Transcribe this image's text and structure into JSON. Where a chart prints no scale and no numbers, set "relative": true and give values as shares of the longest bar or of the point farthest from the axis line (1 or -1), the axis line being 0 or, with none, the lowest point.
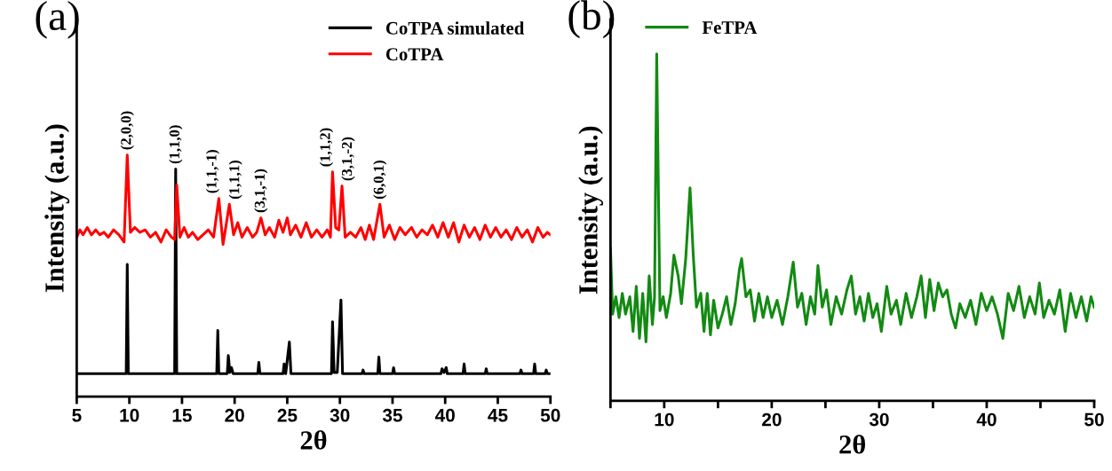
{
  "chart_data": [
    {
      "type": "line",
      "relative": true,
      "xlabel": "2θ",
      "ylabel": "Intensity (a.u.)",
      "xlim": [
        5,
        50
      ],
      "xticks": [
        5,
        10,
        15,
        20,
        25,
        30,
        35,
        40,
        45,
        50
      ],
      "legend": "top right",
      "grid": false,
      "tick_labels": "x",
      "series": [
        {
          "name": "CoTPA simulated",
          "color": "#000000",
          "x": [
            5,
            9.7,
            9.8,
            9.9,
            14.3,
            14.4,
            14.5,
            18.3,
            18.4,
            18.5,
            19.3,
            19.4,
            19.55,
            19.7,
            19.85,
            22.2,
            22.3,
            22.4,
            24.6,
            24.7,
            24.85,
            25.2,
            25.35,
            29.2,
            29.3,
            29.45,
            29.75,
            30.1,
            30.25,
            32.1,
            32.2,
            32.3,
            33.6,
            33.7,
            33.8,
            35.0,
            35.1,
            35.2,
            39.6,
            39.7,
            39.9,
            40.1,
            40.2,
            41.7,
            41.8,
            41.9,
            43.8,
            43.9,
            44.0,
            47.1,
            47.2,
            47.3,
            48.4,
            48.5,
            48.6,
            49.5,
            49.6,
            49.7,
            50
          ],
          "values": [
            0.095,
            0.095,
            0.547,
            0.095,
            0.095,
            0.942,
            0.095,
            0.095,
            0.274,
            0.095,
            0.095,
            0.17,
            0.1,
            0.12,
            0.095,
            0.095,
            0.142,
            0.095,
            0.095,
            0.135,
            0.095,
            0.226,
            0.095,
            0.095,
            0.31,
            0.1,
            0.1,
            0.4,
            0.095,
            0.095,
            0.11,
            0.095,
            0.095,
            0.164,
            0.095,
            0.095,
            0.12,
            0.095,
            0.095,
            0.115,
            0.1,
            0.12,
            0.095,
            0.095,
            0.135,
            0.095,
            0.095,
            0.115,
            0.095,
            0.095,
            0.11,
            0.095,
            0.095,
            0.135,
            0.095,
            0.095,
            0.11,
            0.095,
            0.095
          ]
        },
        {
          "name": "CoTPA",
          "color": "#ff0000",
          "x": [
            5.0,
            5.3,
            5.6,
            6.0,
            6.4,
            6.8,
            7.2,
            7.6,
            8.0,
            8.5,
            9.0,
            9.5,
            9.8,
            10.1,
            10.5,
            11.0,
            11.5,
            12.0,
            12.5,
            13.0,
            13.5,
            14.0,
            14.3,
            14.5,
            14.8,
            15.2,
            15.6,
            16.0,
            16.5,
            17.0,
            17.5,
            18.0,
            18.5,
            18.9,
            19.5,
            19.9,
            20.3,
            20.7,
            21.2,
            21.7,
            22.1,
            22.5,
            22.9,
            23.3,
            23.8,
            24.2,
            24.6,
            25.0,
            25.3,
            25.8,
            26.3,
            26.8,
            27.3,
            27.8,
            28.3,
            28.8,
            29.1,
            29.3,
            29.6,
            29.9,
            30.2,
            30.5,
            31.0,
            31.5,
            32.0,
            32.4,
            32.8,
            33.2,
            33.8,
            34.2,
            34.7,
            35.2,
            35.7,
            36.2,
            36.8,
            37.3,
            37.8,
            38.3,
            38.8,
            39.3,
            39.8,
            40.3,
            40.8,
            41.3,
            41.8,
            42.3,
            42.8,
            43.3,
            43.8,
            44.3,
            44.8,
            45.3,
            45.8,
            46.3,
            46.8,
            47.3,
            47.8,
            48.3,
            48.8,
            49.3,
            49.7,
            50.0
          ],
          "values": [
            0.66,
            0.69,
            0.67,
            0.7,
            0.67,
            0.69,
            0.67,
            0.68,
            0.66,
            0.69,
            0.67,
            0.64,
            1.0,
            0.68,
            0.7,
            0.68,
            0.69,
            0.66,
            0.68,
            0.64,
            0.69,
            0.66,
            0.65,
            0.876,
            0.66,
            0.7,
            0.66,
            0.68,
            0.65,
            0.67,
            0.69,
            0.66,
            0.82,
            0.63,
            0.796,
            0.67,
            0.72,
            0.66,
            0.7,
            0.66,
            0.68,
            0.74,
            0.67,
            0.7,
            0.66,
            0.73,
            0.68,
            0.74,
            0.67,
            0.71,
            0.66,
            0.72,
            0.66,
            0.69,
            0.66,
            0.69,
            0.66,
            0.93,
            0.7,
            0.69,
            0.872,
            0.66,
            0.68,
            0.66,
            0.7,
            0.65,
            0.71,
            0.65,
            0.796,
            0.66,
            0.71,
            0.65,
            0.7,
            0.67,
            0.7,
            0.66,
            0.69,
            0.67,
            0.71,
            0.66,
            0.72,
            0.66,
            0.72,
            0.64,
            0.71,
            0.66,
            0.7,
            0.65,
            0.71,
            0.66,
            0.7,
            0.66,
            0.69,
            0.65,
            0.7,
            0.66,
            0.69,
            0.64,
            0.7,
            0.66,
            0.68,
            0.67
          ]
        }
      ],
      "annotations": [
        "(a)",
        {
          "text": "(2,0,0)",
          "x": 9.8,
          "y": 1.0
        },
        {
          "text": "(1,1,0)",
          "x": 14.4,
          "y": 0.942
        },
        {
          "text": "(1,1,-1)",
          "x": 18.5,
          "y": 0.82
        },
        {
          "text": "(1,1,1)",
          "x": 19.5,
          "y": 0.796
        },
        {
          "text": "(3,1,-1)",
          "x": 22.5,
          "y": 0.74
        },
        {
          "text": "(1,1,2)",
          "x": 29.3,
          "y": 0.93
        },
        {
          "text": "(3,1,-2)",
          "x": 30.2,
          "y": 0.872
        },
        {
          "text": "(6,0,1)",
          "x": 33.8,
          "y": 0.796
        }
      ]
    },
    {
      "type": "line",
      "relative": true,
      "xlabel": "2θ",
      "ylabel": "Intensity (a.u.)",
      "xlim": [
        5,
        50
      ],
      "xticks": [
        {
          "value": 5,
          "label": null
        },
        10,
        {
          "value": 15,
          "label": null
        },
        20,
        {
          "value": 25,
          "label": null
        },
        30,
        {
          "value": 35,
          "label": null
        },
        40,
        {
          "value": 45,
          "label": null
        },
        50
      ],
      "legend": "top left",
      "grid": false,
      "tick_labels": "x",
      "series": [
        {
          "name": "FeTPA",
          "color": "#138a13",
          "x": [
            5.0,
            5.2,
            5.5,
            5.8,
            6.1,
            6.4,
            6.8,
            7.1,
            7.4,
            7.7,
            8.0,
            8.3,
            8.6,
            8.9,
            9.1,
            9.3,
            9.6,
            9.9,
            10.2,
            10.6,
            10.9,
            11.3,
            11.6,
            12.0,
            12.4,
            12.7,
            13.0,
            13.4,
            13.7,
            14.0,
            14.3,
            14.6,
            15.0,
            15.4,
            15.8,
            16.2,
            16.6,
            17.0,
            17.2,
            17.6,
            18.0,
            18.4,
            18.8,
            19.2,
            19.6,
            20.0,
            20.5,
            21.0,
            21.5,
            22.0,
            22.4,
            22.8,
            23.2,
            23.6,
            24.0,
            24.3,
            24.7,
            25.1,
            25.5,
            26.0,
            26.5,
            27.0,
            27.4,
            27.8,
            28.2,
            28.6,
            29.0,
            29.4,
            29.8,
            30.2,
            30.7,
            31.1,
            31.6,
            32.0,
            32.5,
            33.0,
            33.5,
            33.9,
            34.3,
            34.7,
            35.1,
            35.5,
            35.9,
            36.3,
            36.7,
            37.1,
            37.5,
            38.0,
            38.5,
            39.0,
            39.5,
            40.0,
            40.5,
            41.0,
            41.5,
            42.0,
            42.5,
            43.0,
            43.5,
            44.0,
            44.5,
            44.9,
            45.3,
            45.8,
            46.3,
            46.8,
            47.3,
            47.8,
            48.3,
            48.8,
            49.3,
            49.7,
            50.0
          ],
          "values": [
            0.44,
            0.25,
            0.3,
            0.24,
            0.31,
            0.25,
            0.3,
            0.2,
            0.33,
            0.18,
            0.31,
            0.17,
            0.36,
            0.22,
            0.3,
            1.0,
            0.26,
            0.3,
            0.24,
            0.31,
            0.42,
            0.36,
            0.28,
            0.41,
            0.614,
            0.42,
            0.27,
            0.31,
            0.2,
            0.31,
            0.19,
            0.29,
            0.21,
            0.25,
            0.3,
            0.22,
            0.28,
            0.38,
            0.41,
            0.3,
            0.32,
            0.23,
            0.31,
            0.24,
            0.3,
            0.24,
            0.29,
            0.22,
            0.3,
            0.4,
            0.27,
            0.31,
            0.22,
            0.3,
            0.25,
            0.39,
            0.27,
            0.32,
            0.22,
            0.3,
            0.25,
            0.32,
            0.36,
            0.25,
            0.3,
            0.23,
            0.31,
            0.24,
            0.28,
            0.2,
            0.33,
            0.25,
            0.29,
            0.22,
            0.31,
            0.24,
            0.3,
            0.36,
            0.24,
            0.35,
            0.26,
            0.34,
            0.3,
            0.32,
            0.25,
            0.21,
            0.28,
            0.24,
            0.29,
            0.22,
            0.31,
            0.26,
            0.3,
            0.25,
            0.18,
            0.31,
            0.26,
            0.33,
            0.24,
            0.3,
            0.25,
            0.34,
            0.24,
            0.29,
            0.25,
            0.32,
            0.2,
            0.31,
            0.24,
            0.3,
            0.23,
            0.3,
            0.27
          ]
        }
      ],
      "annotations": [
        "(b)"
      ]
    }
  ]
}
